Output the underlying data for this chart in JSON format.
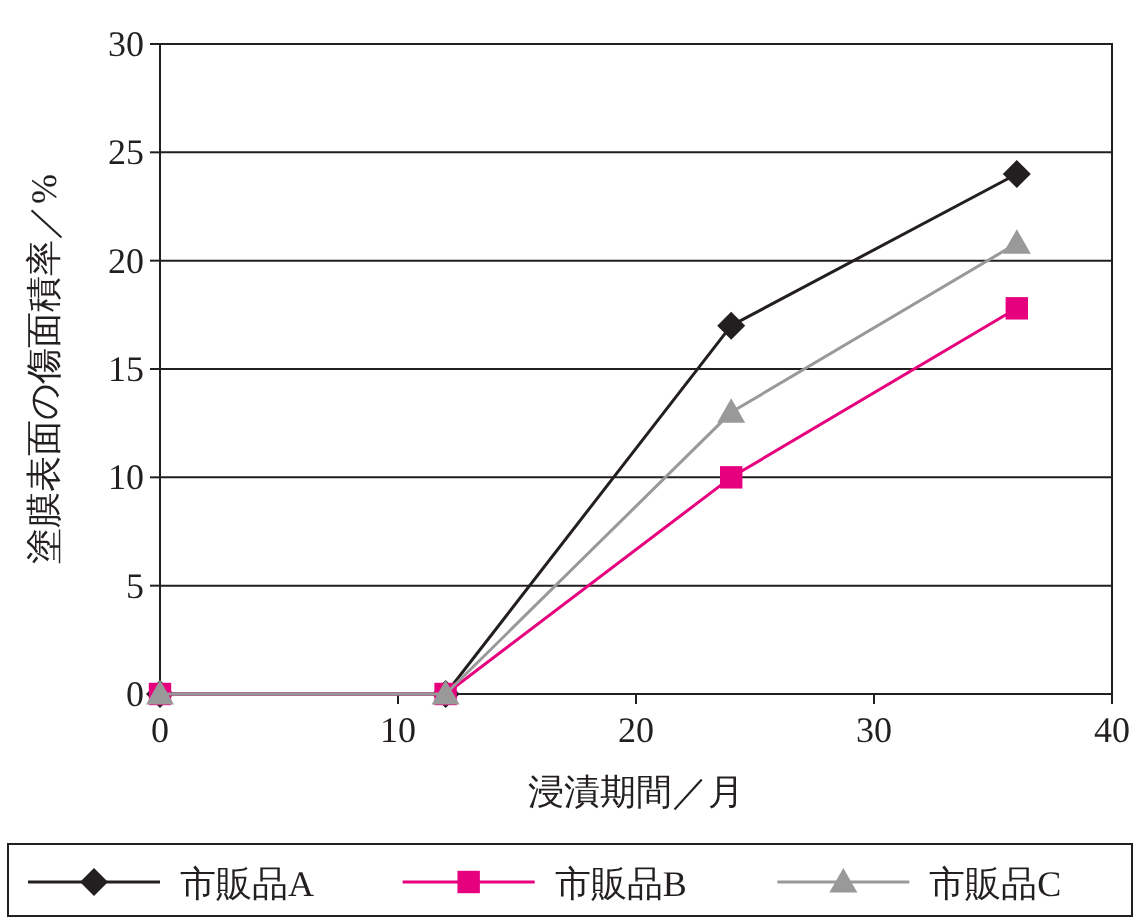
{
  "chart_data": {
    "type": "line",
    "xlabel": "浸漬期間／月",
    "ylabel": "塗膜表面の傷面積率／%",
    "xlim": [
      0,
      40
    ],
    "ylim": [
      0,
      30
    ],
    "xticks": [
      0,
      10,
      20,
      30,
      40
    ],
    "yticks": [
      0,
      5,
      10,
      15,
      20,
      25,
      30
    ],
    "grid": "y",
    "legend": "bottom",
    "series": [
      {
        "name": "市販品A",
        "color": "#231f20",
        "marker": "diamond",
        "x": [
          0,
          12,
          24,
          36
        ],
        "values": [
          0,
          0,
          17,
          24
        ]
      },
      {
        "name": "市販品B",
        "color": "#e6007e",
        "marker": "square",
        "x": [
          0,
          12,
          24,
          36
        ],
        "values": [
          0,
          0,
          10,
          17.8
        ]
      },
      {
        "name": "市販品C",
        "color": "#999999",
        "marker": "triangle",
        "x": [
          0,
          12,
          24,
          36
        ],
        "values": [
          0,
          0,
          13,
          20.8
        ]
      }
    ]
  }
}
